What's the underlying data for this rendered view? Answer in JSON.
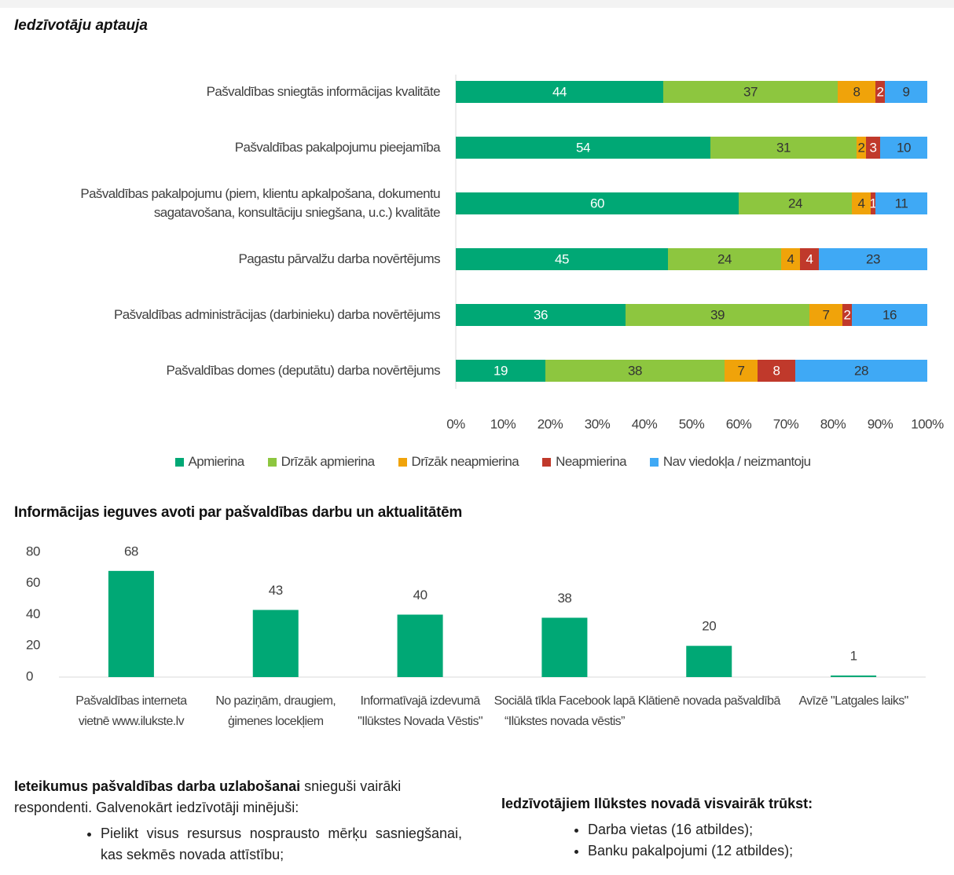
{
  "title": "Iedzīvotāju aptauja",
  "chart_data": [
    {
      "type": "stacked_barh",
      "categories": [
        "Pašvaldības sniegtās informācijas kvalitāte",
        "Pašvaldības pakalpojumu pieejamība",
        "Pašvaldības pakalpojumu (piem, klientu apkalpošana, dokumentu sagatavošana, konsultāciju sniegšana, u.c.) kvalitāte",
        "Pagastu pārvalžu darba novērtējums",
        "Pašvaldības administrācijas (darbinieku) darba novērtējums",
        "Pašvaldības domes (deputātu) darba novērtējums"
      ],
      "series": [
        {
          "name": "Apmierina",
          "color": "#00a875",
          "values": [
            44,
            54,
            60,
            45,
            36,
            19
          ]
        },
        {
          "name": "Drīzāk apmierina",
          "color": "#8dc63f",
          "values": [
            37,
            31,
            24,
            24,
            39,
            38
          ]
        },
        {
          "name": "Drīzāk neapmierina",
          "color": "#f0a30a",
          "values": [
            8,
            2,
            4,
            4,
            7,
            7
          ]
        },
        {
          "name": "Neapmierina",
          "color": "#c0392b",
          "values": [
            2,
            3,
            1,
            4,
            2,
            8
          ]
        },
        {
          "name": "Nav viedokļa / neizmantoju",
          "color": "#3fa9f5",
          "values": [
            9,
            10,
            11,
            23,
            16,
            28
          ]
        }
      ],
      "xlim": [
        0,
        100
      ],
      "xticks": [
        {
          "value": 0,
          "label": "0%"
        },
        {
          "value": 10,
          "label": "10%"
        },
        {
          "value": 20,
          "label": "20%"
        },
        {
          "value": 30,
          "label": "30%"
        },
        {
          "value": 40,
          "label": "40%"
        },
        {
          "value": 50,
          "label": "50%"
        },
        {
          "value": 60,
          "label": "60%"
        },
        {
          "value": 70,
          "label": "70%"
        },
        {
          "value": 80,
          "label": "80%"
        },
        {
          "value": 90,
          "label": "90%"
        },
        {
          "value": 100,
          "label": "100%"
        }
      ]
    },
    {
      "type": "bar",
      "title": "Informācijas ieguves avoti par pašvaldības darbu un aktualitātēm",
      "categories": [
        "Pašvaldības interneta vietnē www.ilukste.lv",
        "No paziņām, draugiem, ģimenes locekļiem",
        "Informatīvajā izdevumā \"Ilūkstes Novada Vēstis\"",
        "Sociālā tīkla Facebook lapā “Ilūkstes novada vēstis”",
        "Klātienē novada pašvaldībā",
        "Avīzē \"Latgales laiks\""
      ],
      "values": [
        68,
        43,
        40,
        38,
        20,
        1
      ],
      "color": "#00a875",
      "ylim": [
        0,
        80
      ],
      "yticks": [
        0,
        20,
        40,
        60,
        80
      ]
    }
  ],
  "recommendations": {
    "lead": "Ieteikumus pašvaldības darba uzlabošanai",
    "text": "snieguši vairāki respondenti. Galvenokārt iedzīvotāji minējuši:",
    "items": [
      "Pielikt visus resursus nosprausto mērķu sasniegšanai, kas sekmēs novada attīstību;"
    ]
  },
  "shortages": {
    "title": "Iedzīvotājiem Ilūkstes novadā visvairāk trūkst:",
    "items": [
      "Darba vietas (16 atbildes);",
      "Banku pakalpojumi (12 atbildes);"
    ]
  }
}
